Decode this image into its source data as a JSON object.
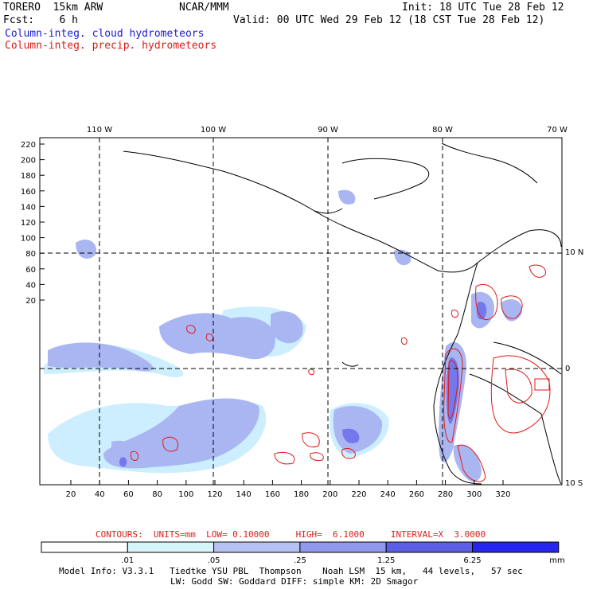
{
  "header": {
    "model": "TORERO  15km ARW",
    "org": "NCAR/MMM",
    "init": "Init: 18 UTC Tue 28 Feb 12",
    "fcst": "Fcst:    6 h",
    "valid": "Valid: 00 UTC Wed 29 Feb 12 (18 CST Tue 28 Feb 12)",
    "legend_cloud": "Column-integ. cloud hydrometeors",
    "legend_precip": "Column-integ. precip. hydrometeors"
  },
  "map": {
    "top_lon_labels": [
      "110 W",
      "100 W",
      "90 W",
      "80 W",
      "70 W"
    ],
    "right_lat_labels": [
      "10 N",
      "0",
      "10 S"
    ],
    "left_y_ticks": [
      "220",
      "200",
      "180",
      "160",
      "140",
      "120",
      "100",
      "80",
      "60",
      "40",
      "20"
    ],
    "bottom_x_ticks": [
      "20",
      "40",
      "60",
      "80",
      "100",
      "120",
      "140",
      "160",
      "180",
      "200",
      "220",
      "240",
      "260",
      "280",
      "300",
      "320"
    ],
    "colors": {
      "cloud_light": "#cdeeff",
      "cloud_mid": "#a9b6f2",
      "cloud_dark": "#7378ec",
      "precip_contour": "#e01a1a",
      "coast": "#000000"
    }
  },
  "contours": {
    "label": "CONTOURS:  UNITS=mm  LOW= 0.10000     HIGH=  6.1000     INTERVAL=X  3.0000"
  },
  "colorbar": {
    "labels": [
      ".01",
      ".05",
      ".25",
      "1.25",
      "6.25",
      "mm"
    ],
    "colors": [
      "#ffffff",
      "#d6f5fb",
      "#b6c2f4",
      "#8f99ee",
      "#5b5fe6",
      "#2626ee"
    ]
  },
  "footer": {
    "line1": "Model Info: V3.3.1   Tiedtke YSU PBL  Thompson    Noah LSM  15 km,   44 levels,   57 sec",
    "line2": "LW: Godd SW: Goddard DIFF: simple KM: 2D Smagor"
  }
}
